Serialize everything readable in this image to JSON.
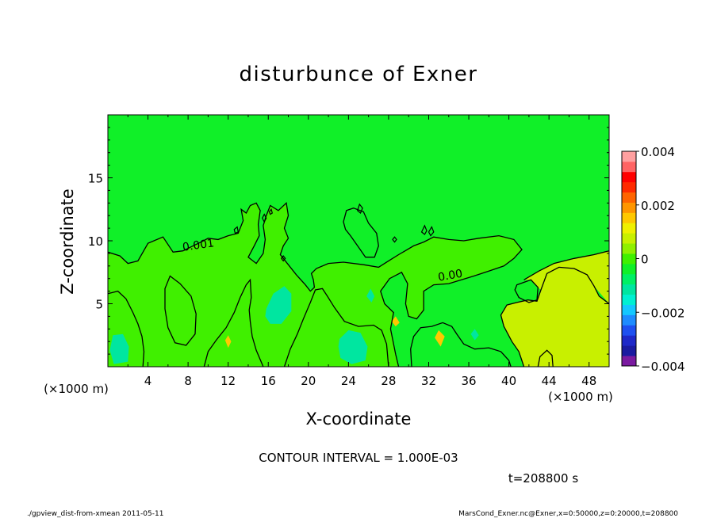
{
  "chart_data": {
    "type": "heatmap",
    "title": "disturbunce of Exner",
    "xlabel": "X-coordinate",
    "ylabel": "Z-coordinate",
    "x_unit_label": "(×1000 m)",
    "xlim": [
      0,
      50
    ],
    "ylim": [
      0,
      20
    ],
    "x_ticks": [
      4,
      8,
      12,
      16,
      20,
      24,
      28,
      32,
      36,
      40,
      44,
      48
    ],
    "y_ticks": [
      5,
      10,
      15
    ],
    "colorbar": {
      "range": [
        -0.004,
        0.004
      ],
      "labels": [
        "0.004",
        "0.002",
        "0",
        "−0.002",
        "−0.004"
      ],
      "label_values": [
        0.004,
        0.002,
        0,
        -0.002,
        -0.004
      ],
      "colors": [
        "#7a1aa0",
        "#1a1aa0",
        "#1e28c8",
        "#1e50f0",
        "#1e8cff",
        "#14c8ff",
        "#00f0d2",
        "#00e6a0",
        "#00f064",
        "#10f028",
        "#40f000",
        "#90f000",
        "#c8f000",
        "#f0f000",
        "#ffc800",
        "#ff9600",
        "#ff6400",
        "#ff2a00",
        "#ff0000",
        "#ff6464",
        "#ffa0a0"
      ]
    },
    "contour_labels": [
      "0.001",
      "0.00"
    ],
    "annotations": {
      "contour_interval": "CONTOUR INTERVAL = 1.000E-03",
      "time": "t=208800 s",
      "footer_left": "./gpview_dist-from-xmean  2011-05-11",
      "footer_right": "MarsCond_Exner.nc@Exner,x=0:50000,z=0:20000,t=208800"
    },
    "zero_contours": [
      {
        "id": "upper-region",
        "points": [
          [
            0,
            9.1
          ],
          [
            1.2,
            8.8
          ],
          [
            2,
            8.2
          ],
          [
            3,
            8.4
          ],
          [
            4,
            9.8
          ],
          [
            5.5,
            10.3
          ],
          [
            6.5,
            9.1
          ],
          [
            7.5,
            9.2
          ],
          [
            8.5,
            9.6
          ],
          [
            9.3,
            9.9
          ],
          [
            10,
            10.2
          ],
          [
            11,
            10.1
          ],
          [
            12,
            10.4
          ],
          [
            13,
            10.6
          ],
          [
            13.5,
            11.6
          ],
          [
            13.3,
            12.5
          ],
          [
            13.8,
            12.2
          ],
          [
            14.2,
            12.8
          ],
          [
            14.8,
            13
          ],
          [
            15.2,
            12.4
          ],
          [
            15,
            11.3
          ],
          [
            15.1,
            10.4
          ],
          [
            14.6,
            9.6
          ],
          [
            14,
            8.7
          ],
          [
            14.8,
            8.2
          ],
          [
            15.5,
            9
          ],
          [
            15.7,
            10.1
          ],
          [
            15.5,
            11.2
          ],
          [
            15.8,
            12
          ],
          [
            16.2,
            12.8
          ],
          [
            17,
            12.4
          ],
          [
            17.8,
            13
          ],
          [
            18,
            12
          ],
          [
            17.6,
            11
          ],
          [
            18,
            10.2
          ],
          [
            17.5,
            9.6
          ],
          [
            17.2,
            8.9
          ],
          [
            18,
            8.1
          ],
          [
            18.8,
            7.3
          ],
          [
            19.7,
            6.5
          ],
          [
            20.2,
            6
          ],
          [
            20.6,
            6.3
          ],
          [
            20.5,
            6.9
          ],
          [
            20.3,
            7.4
          ],
          [
            20.8,
            7.8
          ],
          [
            22,
            8.2
          ],
          [
            23.5,
            8.3
          ],
          [
            25.5,
            8.1
          ],
          [
            27,
            7.9
          ],
          [
            28,
            8.4
          ],
          [
            29,
            8.9
          ],
          [
            30.5,
            9.6
          ],
          [
            31.5,
            9.9
          ],
          [
            32.5,
            10.3
          ],
          [
            34,
            10.1
          ],
          [
            35.5,
            10
          ],
          [
            37,
            10.2
          ],
          [
            39,
            10.4
          ],
          [
            40.5,
            10.1
          ],
          [
            41.3,
            9.3
          ],
          [
            40.5,
            8.6
          ],
          [
            39.5,
            8
          ],
          [
            38,
            7.6
          ],
          [
            36.5,
            7.2
          ],
          [
            34,
            6.6
          ],
          [
            32.5,
            6.5
          ],
          [
            31.5,
            6
          ],
          [
            31.5,
            4.5
          ],
          [
            30.8,
            3.8
          ],
          [
            30,
            4
          ],
          [
            29.7,
            5
          ],
          [
            29.9,
            6.6
          ],
          [
            29.3,
            7.5
          ],
          [
            28.1,
            7
          ],
          [
            27.2,
            6
          ],
          [
            27.6,
            5
          ],
          [
            28.5,
            4.3
          ],
          [
            28.2,
            3
          ],
          [
            28.7,
            1
          ],
          [
            29,
            0
          ]
        ]
      },
      {
        "id": "right-edge",
        "points": [
          [
            41.5,
            0
          ],
          [
            41,
            1.2
          ],
          [
            40.3,
            2
          ],
          [
            39.5,
            3.2
          ],
          [
            39.2,
            4.1
          ],
          [
            39.8,
            4.9
          ],
          [
            40.8,
            5.1
          ],
          [
            41.9,
            5.3
          ],
          [
            42.8,
            5.2
          ],
          [
            43.2,
            6.1
          ],
          [
            43.8,
            7.4
          ],
          [
            45,
            7.9
          ],
          [
            46.5,
            7.8
          ],
          [
            47.8,
            7.3
          ],
          [
            48.5,
            6.4
          ],
          [
            49,
            5.6
          ],
          [
            50,
            5
          ]
        ]
      },
      {
        "id": "right-lobe",
        "points": [
          [
            41.5,
            6.9
          ],
          [
            43,
            7.6
          ],
          [
            44.5,
            8.2
          ],
          [
            46.5,
            8.6
          ],
          [
            48.5,
            8.9
          ],
          [
            50,
            9.2
          ]
        ]
      },
      {
        "id": "right-blob",
        "points": [
          [
            40.8,
            6.5
          ],
          [
            42.2,
            6.9
          ],
          [
            42.9,
            6.3
          ],
          [
            42.8,
            5.3
          ],
          [
            42,
            5.1
          ],
          [
            41,
            5.5
          ],
          [
            40.6,
            6.1
          ],
          [
            40.8,
            6.5
          ]
        ]
      },
      {
        "id": "oval-left",
        "points": [
          [
            6.2,
            7.2
          ],
          [
            7.2,
            6.6
          ],
          [
            8.3,
            5.6
          ],
          [
            8.8,
            4.2
          ],
          [
            8.7,
            2.6
          ],
          [
            7.8,
            1.7
          ],
          [
            6.7,
            1.9
          ],
          [
            6,
            3.1
          ],
          [
            5.7,
            4.6
          ],
          [
            5.7,
            6.2
          ],
          [
            6.2,
            7.2
          ]
        ]
      },
      {
        "id": "blob-center",
        "points": [
          [
            23.5,
            11.5
          ],
          [
            23.8,
            12.4
          ],
          [
            24.5,
            12.6
          ],
          [
            25.5,
            12.3
          ],
          [
            26,
            11.4
          ],
          [
            26.8,
            10.6
          ],
          [
            27,
            9.6
          ],
          [
            26.6,
            8.7
          ],
          [
            25.7,
            8.7
          ],
          [
            25,
            9.5
          ],
          [
            24.2,
            10.4
          ],
          [
            23.7,
            10.9
          ],
          [
            23.5,
            11.5
          ]
        ]
      },
      {
        "id": "bottom-left",
        "points": [
          [
            0,
            5.8
          ],
          [
            1,
            6
          ],
          [
            1.8,
            5.4
          ],
          [
            2.5,
            4.3
          ],
          [
            3,
            3.4
          ],
          [
            3.4,
            2.4
          ],
          [
            3.6,
            1.2
          ],
          [
            3.5,
            0
          ]
        ]
      },
      {
        "id": "bottom-mid-left",
        "points": [
          [
            9.6,
            0
          ],
          [
            10,
            1.2
          ],
          [
            10.8,
            2.1
          ],
          [
            11.8,
            3.1
          ],
          [
            12.6,
            4.3
          ],
          [
            13.2,
            5.5
          ],
          [
            13.8,
            6.5
          ],
          [
            14.2,
            6.9
          ],
          [
            14.3,
            5.5
          ],
          [
            14.1,
            4.5
          ],
          [
            14.2,
            3.6
          ],
          [
            14.4,
            2.4
          ],
          [
            14.8,
            1.3
          ],
          [
            15.5,
            0
          ]
        ]
      },
      {
        "id": "bottom-mid",
        "points": [
          [
            17.6,
            0
          ],
          [
            18.2,
            1.4
          ],
          [
            18.9,
            2.6
          ],
          [
            19.5,
            3.8
          ],
          [
            20.2,
            5.1
          ],
          [
            20.7,
            6.1
          ],
          [
            21.4,
            6.2
          ],
          [
            21.9,
            5.6
          ],
          [
            22.6,
            4.7
          ],
          [
            23.6,
            3.6
          ],
          [
            25,
            3.2
          ],
          [
            26.5,
            3.3
          ],
          [
            27.3,
            2.9
          ],
          [
            27.8,
            1.8
          ],
          [
            28,
            0
          ]
        ]
      },
      {
        "id": "bottom-right",
        "points": [
          [
            30.3,
            0
          ],
          [
            30.2,
            1.4
          ],
          [
            30.5,
            2.4
          ],
          [
            31.2,
            3.1
          ],
          [
            32.3,
            3.2
          ],
          [
            33.4,
            3.5
          ],
          [
            34.3,
            3.2
          ],
          [
            34.8,
            2.6
          ],
          [
            35.5,
            1.8
          ],
          [
            36.6,
            1.4
          ],
          [
            38,
            1.5
          ],
          [
            39.2,
            1.2
          ],
          [
            40,
            0.5
          ],
          [
            40.2,
            0
          ]
        ]
      },
      {
        "id": "bottom-right-small",
        "points": [
          [
            42.9,
            0
          ],
          [
            43.1,
            0.8
          ],
          [
            43.8,
            1.3
          ],
          [
            44.3,
            0.9
          ],
          [
            44.4,
            0
          ]
        ]
      }
    ],
    "positive_blobs": [
      {
        "points": [
          [
            0.5,
            2.5
          ],
          [
            1.5,
            2.6
          ],
          [
            2.1,
            1.6
          ],
          [
            2,
            0.4
          ],
          [
            0.6,
            0.2
          ],
          [
            0.2,
            1.3
          ],
          [
            0.5,
            2.5
          ]
        ]
      },
      {
        "points": [
          [
            15.8,
            4.6
          ],
          [
            16.5,
            5.8
          ],
          [
            17.6,
            6.4
          ],
          [
            18.3,
            5.8
          ],
          [
            18.3,
            4.4
          ],
          [
            17.3,
            3.4
          ],
          [
            16.2,
            3.4
          ],
          [
            15.7,
            4
          ],
          [
            15.8,
            4.6
          ]
        ]
      },
      {
        "points": [
          [
            23.1,
            2.2
          ],
          [
            24,
            2.9
          ],
          [
            25.2,
            2.7
          ],
          [
            25.9,
            1.6
          ],
          [
            25.7,
            0.5
          ],
          [
            24.3,
            0.2
          ],
          [
            23.2,
            0.7
          ],
          [
            23,
            1.6
          ],
          [
            23.1,
            2.2
          ]
        ]
      },
      {
        "points": [
          [
            25.8,
            5.6
          ],
          [
            26.2,
            6.2
          ],
          [
            26.6,
            5.6
          ],
          [
            26.3,
            5.1
          ],
          [
            25.8,
            5.6
          ]
        ]
      },
      {
        "points": [
          [
            36.2,
            2.6
          ],
          [
            36.6,
            3
          ],
          [
            37,
            2.5
          ],
          [
            36.6,
            2.1
          ],
          [
            36.2,
            2.6
          ]
        ]
      }
    ],
    "pale_blobs": [
      {
        "points": [
          [
            11.7,
            2.1
          ],
          [
            12,
            2.5
          ],
          [
            12.3,
            2
          ],
          [
            12,
            1.5
          ],
          [
            11.7,
            2.1
          ]
        ]
      },
      {
        "points": [
          [
            28.3,
            3.6
          ],
          [
            28.7,
            4
          ],
          [
            29.1,
            3.5
          ],
          [
            28.7,
            3.2
          ],
          [
            28.3,
            3.6
          ]
        ]
      },
      {
        "points": [
          [
            32.6,
            2.3
          ],
          [
            33,
            2.9
          ],
          [
            33.6,
            2.4
          ],
          [
            33.2,
            1.6
          ],
          [
            32.6,
            2.3
          ]
        ]
      }
    ],
    "small_contours": [
      {
        "points": [
          [
            12.6,
            10.9
          ],
          [
            12.9,
            11.1
          ],
          [
            13,
            10.7
          ],
          [
            12.7,
            10.6
          ],
          [
            12.6,
            10.9
          ]
        ]
      },
      {
        "points": [
          [
            15.4,
            11.8
          ],
          [
            15.6,
            12.1
          ],
          [
            15.8,
            11.8
          ],
          [
            15.6,
            11.5
          ],
          [
            15.4,
            11.8
          ]
        ]
      },
      {
        "points": [
          [
            24.9,
            12.4
          ],
          [
            25.1,
            12.9
          ],
          [
            25.4,
            12.6
          ],
          [
            25.2,
            12.2
          ],
          [
            24.9,
            12.4
          ]
        ]
      },
      {
        "points": [
          [
            28.4,
            10.1
          ],
          [
            28.6,
            10.3
          ],
          [
            28.8,
            10.1
          ],
          [
            28.6,
            9.9
          ],
          [
            28.4,
            10.1
          ]
        ]
      },
      {
        "points": [
          [
            31.3,
            10.7
          ],
          [
            31.6,
            11.2
          ],
          [
            31.8,
            10.8
          ],
          [
            31.6,
            10.5
          ],
          [
            31.3,
            10.7
          ]
        ]
      },
      {
        "points": [
          [
            32,
            10.7
          ],
          [
            32.3,
            11.1
          ],
          [
            32.5,
            10.7
          ],
          [
            32.2,
            10.4
          ],
          [
            32,
            10.7
          ]
        ]
      },
      {
        "points": [
          [
            17.3,
            8.6
          ],
          [
            17.5,
            8.8
          ],
          [
            17.7,
            8.6
          ],
          [
            17.5,
            8.4
          ],
          [
            17.3,
            8.6
          ]
        ]
      },
      {
        "points": [
          [
            16.1,
            12.3
          ],
          [
            16.3,
            12.5
          ],
          [
            16.4,
            12.2
          ],
          [
            16.2,
            12.1
          ],
          [
            16.1,
            12.3
          ]
        ]
      }
    ]
  }
}
